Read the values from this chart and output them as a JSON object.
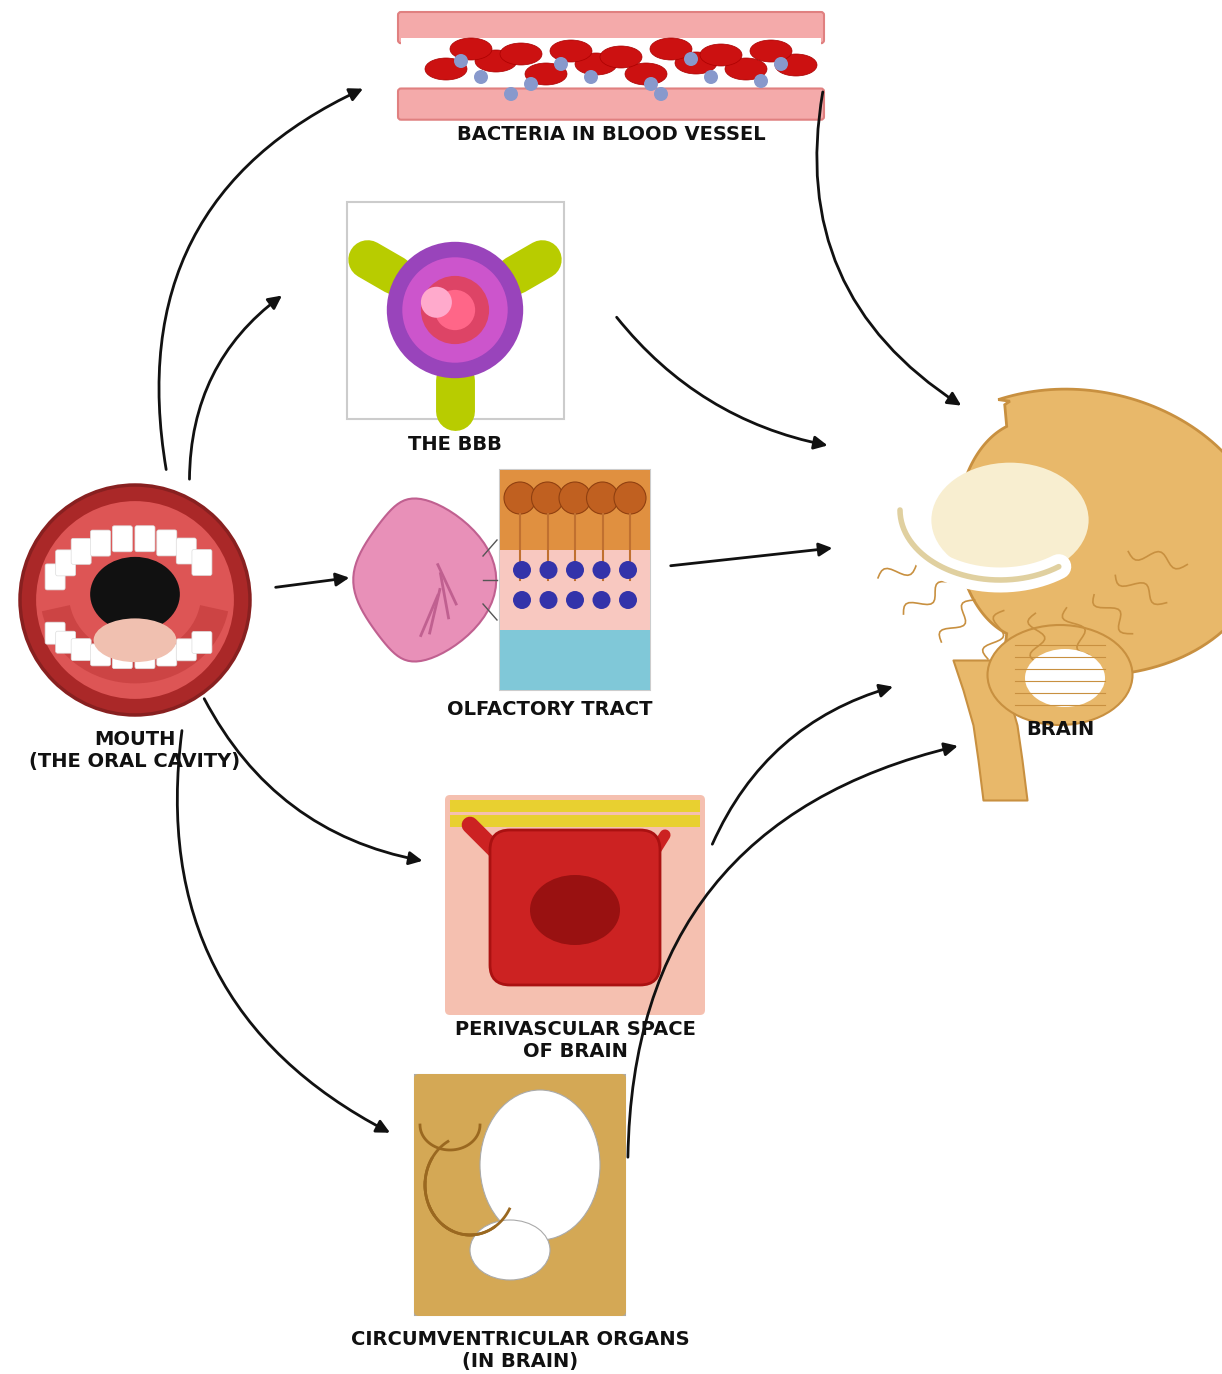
{
  "background_color": "#ffffff",
  "labels": {
    "bacteria": "BACTERIA IN BLOOD VESSEL",
    "bbb": "THE BBB",
    "mouth": "MOUTH\n(THE ORAL CAVITY)",
    "olfactory": "OLFACTORY TRACT",
    "brain": "BRAIN",
    "perivascular": "PERIVASCULAR SPACE\nOF BRAIN",
    "circumventricular": "CIRCUMVENTRICULAR ORGANS\n(IN BRAIN)"
  },
  "label_fontsize": 14,
  "arrow_color": "#111111",
  "arrow_lw": 2.0
}
